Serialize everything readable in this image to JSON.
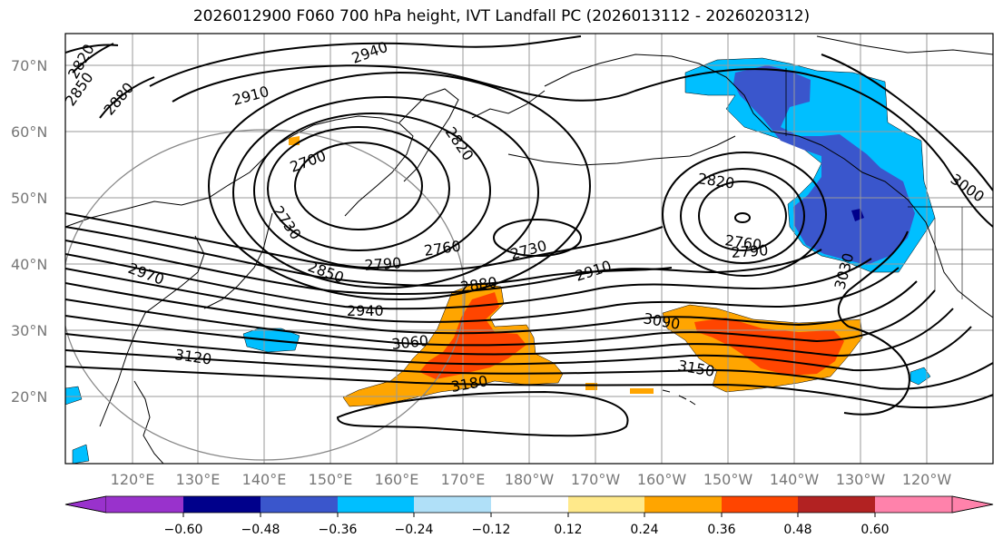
{
  "title": "2026012900 F060 700 hPa height, IVT Landfall PC (2026013112 - 2026020312)",
  "map": {
    "lat_labels": [
      "70°N",
      "60°N",
      "50°N",
      "40°N",
      "30°N",
      "20°N"
    ],
    "lon_labels": [
      "120°E",
      "130°E",
      "140°E",
      "150°E",
      "160°E",
      "170°E",
      "180°W",
      "170°W",
      "160°W",
      "150°W",
      "140°W",
      "130°W",
      "120°W"
    ],
    "contour_labels": [
      "2820",
      "2850",
      "2880",
      "2940",
      "2910",
      "2820",
      "2700",
      "2730",
      "2760",
      "2730",
      "2790",
      "2850",
      "2970",
      "2880",
      "2910",
      "2820",
      "2760",
      "2790",
      "3000",
      "3030",
      "3090",
      "2940",
      "3060",
      "3120",
      "3150",
      "3180"
    ],
    "colors": {
      "neg_060": "#9932cc",
      "neg_048": "#00008b",
      "neg_036": "#3a56cc",
      "neg_024": "#00bfff",
      "neg_012": "#b0e0f8",
      "zero": "#ffffff",
      "pos_012": "#ffe98a",
      "pos_024": "#ffa500",
      "pos_036": "#ff4500",
      "pos_048": "#b22222",
      "pos_060": "#ff82ab"
    }
  },
  "colorbar": {
    "ticks": [
      "−0.60",
      "−0.48",
      "−0.36",
      "−0.24",
      "−0.12",
      "0.12",
      "0.24",
      "0.36",
      "0.48",
      "0.60"
    ],
    "segment_colors": [
      "#9932cc",
      "#00008b",
      "#3a56cc",
      "#00bfff",
      "#b0e0f8",
      "#ffffff",
      "#ffe98a",
      "#ffa500",
      "#ff4500",
      "#b22222",
      "#ff82ab"
    ]
  }
}
